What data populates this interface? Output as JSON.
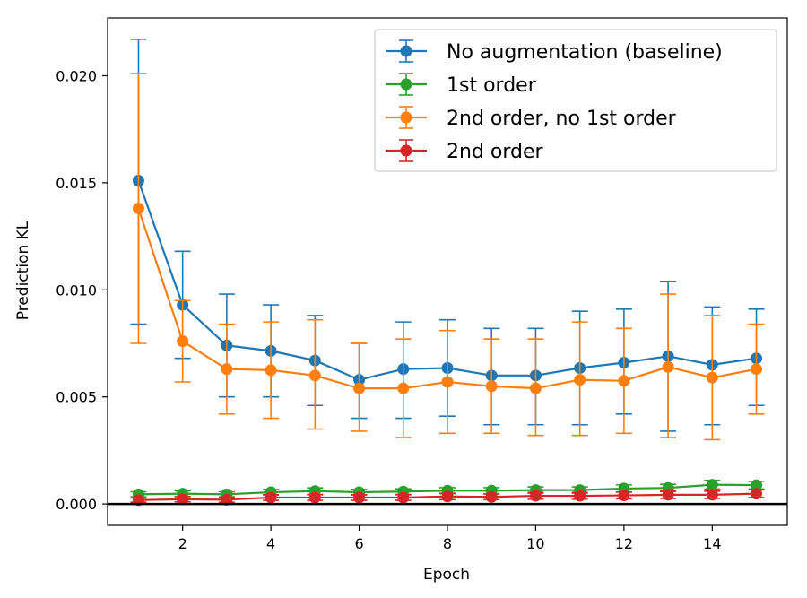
{
  "chart_data": {
    "type": "line",
    "xlabel": "Epoch",
    "ylabel": "Prediction KL",
    "xlim": [
      0.3,
      15.7
    ],
    "ylim": [
      -0.001,
      0.0227
    ],
    "xticks": [
      2,
      4,
      6,
      8,
      10,
      12,
      14
    ],
    "yticks": [
      0.0,
      0.005,
      0.01,
      0.015,
      0.02
    ],
    "ytick_labels": [
      "0.000",
      "0.005",
      "0.010",
      "0.015",
      "0.020"
    ],
    "grid": false,
    "legend": "top-right",
    "hline": 0.0,
    "x": [
      1,
      2,
      3,
      4,
      5,
      6,
      7,
      8,
      9,
      10,
      11,
      12,
      13,
      14,
      15
    ],
    "series": [
      {
        "name": "No augmentation (baseline)",
        "color": "#1f77b4",
        "values": [
          0.0151,
          0.0093,
          0.0074,
          0.00715,
          0.0067,
          0.0058,
          0.0063,
          0.00635,
          0.006,
          0.006,
          0.00635,
          0.0066,
          0.0069,
          0.0065,
          0.0068
        ],
        "err_low": [
          0.0084,
          0.0068,
          0.005,
          0.005,
          0.0046,
          0.004,
          0.004,
          0.0041,
          0.0037,
          0.0037,
          0.0037,
          0.0042,
          0.0034,
          0.0037,
          0.0046
        ],
        "err_high": [
          0.0217,
          0.0118,
          0.0098,
          0.0093,
          0.0088,
          0.0075,
          0.0085,
          0.0086,
          0.0082,
          0.0082,
          0.009,
          0.0091,
          0.0104,
          0.0092,
          0.0091
        ]
      },
      {
        "name": "1st order",
        "color": "#2ca02c",
        "values": [
          0.00045,
          0.00048,
          0.00045,
          0.00055,
          0.0006,
          0.00055,
          0.00058,
          0.00062,
          0.00062,
          0.00065,
          0.00065,
          0.00072,
          0.00075,
          0.0009,
          0.00088
        ],
        "err_low": [
          0.00033,
          0.00035,
          0.00033,
          0.00042,
          0.00045,
          0.00042,
          0.00045,
          0.00048,
          0.00048,
          0.0005,
          0.0005,
          0.00055,
          0.00058,
          0.0007,
          0.0007
        ],
        "err_high": [
          0.00057,
          0.00061,
          0.00057,
          0.00068,
          0.00075,
          0.00068,
          0.00071,
          0.00076,
          0.00076,
          0.0008,
          0.0008,
          0.00089,
          0.00092,
          0.0011,
          0.00106
        ]
      },
      {
        "name": "2nd order, no 1st order",
        "color": "#ff7f0e",
        "values": [
          0.0138,
          0.0076,
          0.0063,
          0.00625,
          0.006,
          0.0054,
          0.0054,
          0.0057,
          0.0055,
          0.0054,
          0.0058,
          0.00575,
          0.0064,
          0.0059,
          0.0063
        ],
        "err_low": [
          0.0075,
          0.0057,
          0.0042,
          0.004,
          0.0035,
          0.0034,
          0.0031,
          0.0033,
          0.0033,
          0.0032,
          0.0032,
          0.0033,
          0.0031,
          0.003,
          0.0042
        ],
        "err_high": [
          0.0201,
          0.0095,
          0.0084,
          0.0085,
          0.0086,
          0.0075,
          0.0077,
          0.0081,
          0.0077,
          0.0077,
          0.0085,
          0.0082,
          0.0098,
          0.0088,
          0.0084
        ]
      },
      {
        "name": "2nd order",
        "color": "#d62728",
        "values": [
          0.00018,
          0.00022,
          0.0002,
          0.0003,
          0.0003,
          0.0003,
          0.0003,
          0.00035,
          0.00033,
          0.00038,
          0.00038,
          0.0004,
          0.00043,
          0.00043,
          0.00048
        ],
        "err_low": [
          8e-05,
          0.0001,
          8e-05,
          0.00017,
          0.00017,
          0.00017,
          0.00017,
          0.0002,
          0.0002,
          0.00022,
          0.00022,
          0.00024,
          0.00026,
          0.00026,
          0.0003
        ],
        "err_high": [
          0.00028,
          0.00034,
          0.00032,
          0.00043,
          0.00043,
          0.00043,
          0.00043,
          0.0005,
          0.00046,
          0.00054,
          0.00054,
          0.00056,
          0.0006,
          0.0006,
          0.00066
        ]
      }
    ]
  }
}
